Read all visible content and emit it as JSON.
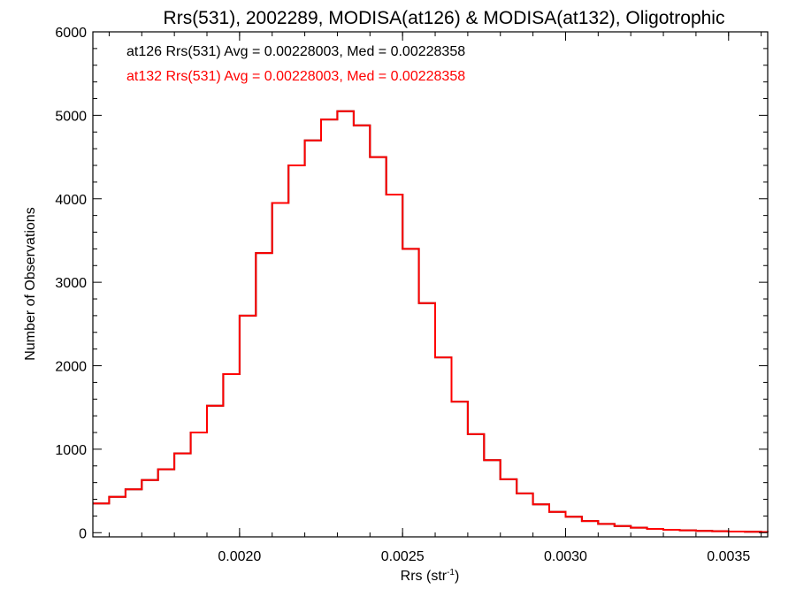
{
  "chart_data": {
    "type": "line",
    "title": "Rrs(531), 2002289, MODISA(at126) & MODISA(at132), Oligotrophic",
    "xlabel": "Rrs (str",
    "xlabel_sup": "-1",
    "xlabel_end": ")",
    "ylabel": "Number of Observations",
    "xlim": [
      0.00155,
      0.00362
    ],
    "ylim": [
      -50,
      6000
    ],
    "xticks": [
      0.002,
      0.0025,
      0.003,
      0.0035
    ],
    "xtick_labels": [
      "0.0020",
      "0.0025",
      "0.0030",
      "0.0035"
    ],
    "yticks": [
      0,
      1000,
      2000,
      3000,
      4000,
      5000,
      6000
    ],
    "ytick_labels": [
      "0",
      "1000",
      "2000",
      "3000",
      "4000",
      "5000",
      "6000"
    ],
    "grid": false,
    "legend_placement": "top-left",
    "annotations": [
      {
        "text": "at126 Rrs(531) Avg = 0.00228003, Med = 0.00228358",
        "color": "#000000"
      },
      {
        "text": "at132 Rrs(531) Avg = 0.00228003, Med = 0.00228358",
        "color": "#ff0000"
      }
    ],
    "series": [
      {
        "name": "at126",
        "color": "#000000",
        "x": [
          0.00155,
          0.0016,
          0.00165,
          0.0017,
          0.00175,
          0.0018,
          0.00185,
          0.0019,
          0.00195,
          0.002,
          0.00205,
          0.0021,
          0.00215,
          0.0022,
          0.00225,
          0.0023,
          0.00235,
          0.0024,
          0.00245,
          0.0025,
          0.00255,
          0.0026,
          0.00265,
          0.0027,
          0.00275,
          0.0028,
          0.00285,
          0.0029,
          0.00295,
          0.003,
          0.00305,
          0.0031,
          0.00315,
          0.0032,
          0.00325,
          0.0033,
          0.00335,
          0.0034,
          0.00345,
          0.0035,
          0.00355,
          0.0036,
          0.00362
        ],
        "y": [
          350,
          430,
          520,
          630,
          760,
          950,
          1200,
          1520,
          1900,
          2600,
          3350,
          3950,
          4400,
          4700,
          4950,
          5050,
          4880,
          4500,
          4050,
          3400,
          2750,
          2100,
          1570,
          1180,
          870,
          640,
          470,
          340,
          250,
          190,
          140,
          105,
          80,
          60,
          45,
          35,
          28,
          22,
          18,
          14,
          11,
          8,
          6
        ]
      },
      {
        "name": "at132",
        "color": "#ff0000",
        "x": [
          0.00155,
          0.0016,
          0.00165,
          0.0017,
          0.00175,
          0.0018,
          0.00185,
          0.0019,
          0.00195,
          0.002,
          0.00205,
          0.0021,
          0.00215,
          0.0022,
          0.00225,
          0.0023,
          0.00235,
          0.0024,
          0.00245,
          0.0025,
          0.00255,
          0.0026,
          0.00265,
          0.0027,
          0.00275,
          0.0028,
          0.00285,
          0.0029,
          0.00295,
          0.003,
          0.00305,
          0.0031,
          0.00315,
          0.0032,
          0.00325,
          0.0033,
          0.00335,
          0.0034,
          0.00345,
          0.0035,
          0.00355,
          0.0036,
          0.00362
        ],
        "y": [
          350,
          430,
          520,
          630,
          760,
          950,
          1200,
          1520,
          1900,
          2600,
          3350,
          3950,
          4400,
          4700,
          4950,
          5050,
          4880,
          4500,
          4050,
          3400,
          2750,
          2100,
          1570,
          1180,
          870,
          640,
          470,
          340,
          250,
          190,
          140,
          105,
          80,
          60,
          45,
          35,
          28,
          22,
          18,
          14,
          11,
          8,
          6
        ]
      }
    ]
  }
}
